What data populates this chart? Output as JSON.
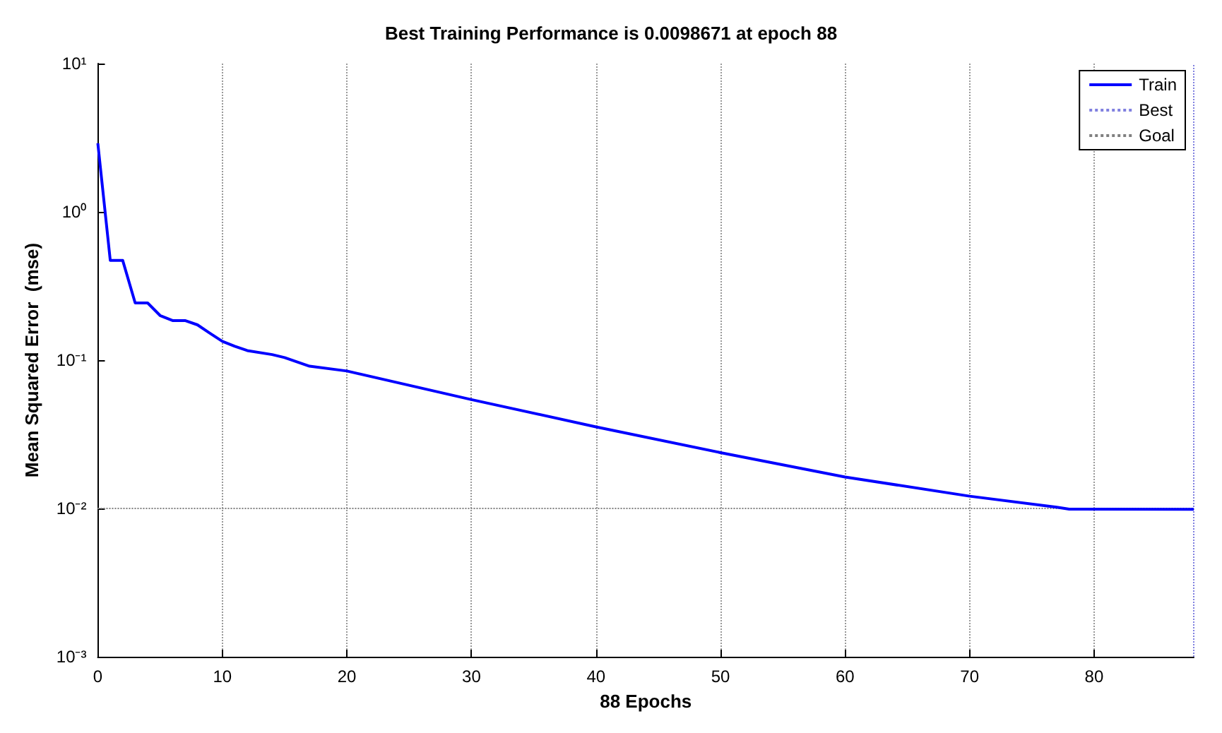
{
  "chart_data": {
    "type": "line",
    "title": "Best Training Performance is 0.0098671 at epoch 88",
    "xlabel": "88 Epochs",
    "ylabel": "Mean Squared Error  (mse)",
    "log": "y",
    "grid": "x",
    "legend": "top right",
    "line_style": "solid",
    "marker": "none",
    "xlim": [
      0,
      88
    ],
    "xticks": [
      0,
      10,
      20,
      30,
      40,
      50,
      60,
      70,
      80
    ],
    "ylim": [
      0.001,
      10
    ],
    "yticks": [
      {
        "value": 0.001,
        "label": "10⁻³"
      },
      {
        "value": 0.01,
        "label": "10⁻²"
      },
      {
        "value": 0.1,
        "label": "10⁻¹"
      },
      {
        "value": 1,
        "label": "10⁰"
      },
      {
        "value": 10,
        "label": "10¹"
      }
    ],
    "series": [
      {
        "name": "Train",
        "color": "#0000ff",
        "x": [
          0,
          1,
          2,
          3,
          4,
          5,
          6,
          7,
          8,
          9,
          10,
          11,
          12,
          14,
          15,
          17,
          20,
          30,
          40,
          50,
          60,
          70,
          77,
          78,
          88
        ],
        "values": [
          2.9,
          0.47,
          0.47,
          0.243,
          0.243,
          0.2,
          0.185,
          0.185,
          0.173,
          0.152,
          0.134,
          0.124,
          0.116,
          0.109,
          0.104,
          0.091,
          0.0845,
          0.0542,
          0.0355,
          0.0238,
          0.0163,
          0.0121,
          0.0102,
          0.0099,
          0.0098671
        ]
      }
    ],
    "ref_lines": [
      {
        "axis": "x",
        "value": 88,
        "label": "Best",
        "color": "#8080e0",
        "line_style": "dotted"
      },
      {
        "axis": "y",
        "value": 0.01,
        "label": "Goal",
        "color": "#808080",
        "line_style": "dotted"
      }
    ]
  }
}
